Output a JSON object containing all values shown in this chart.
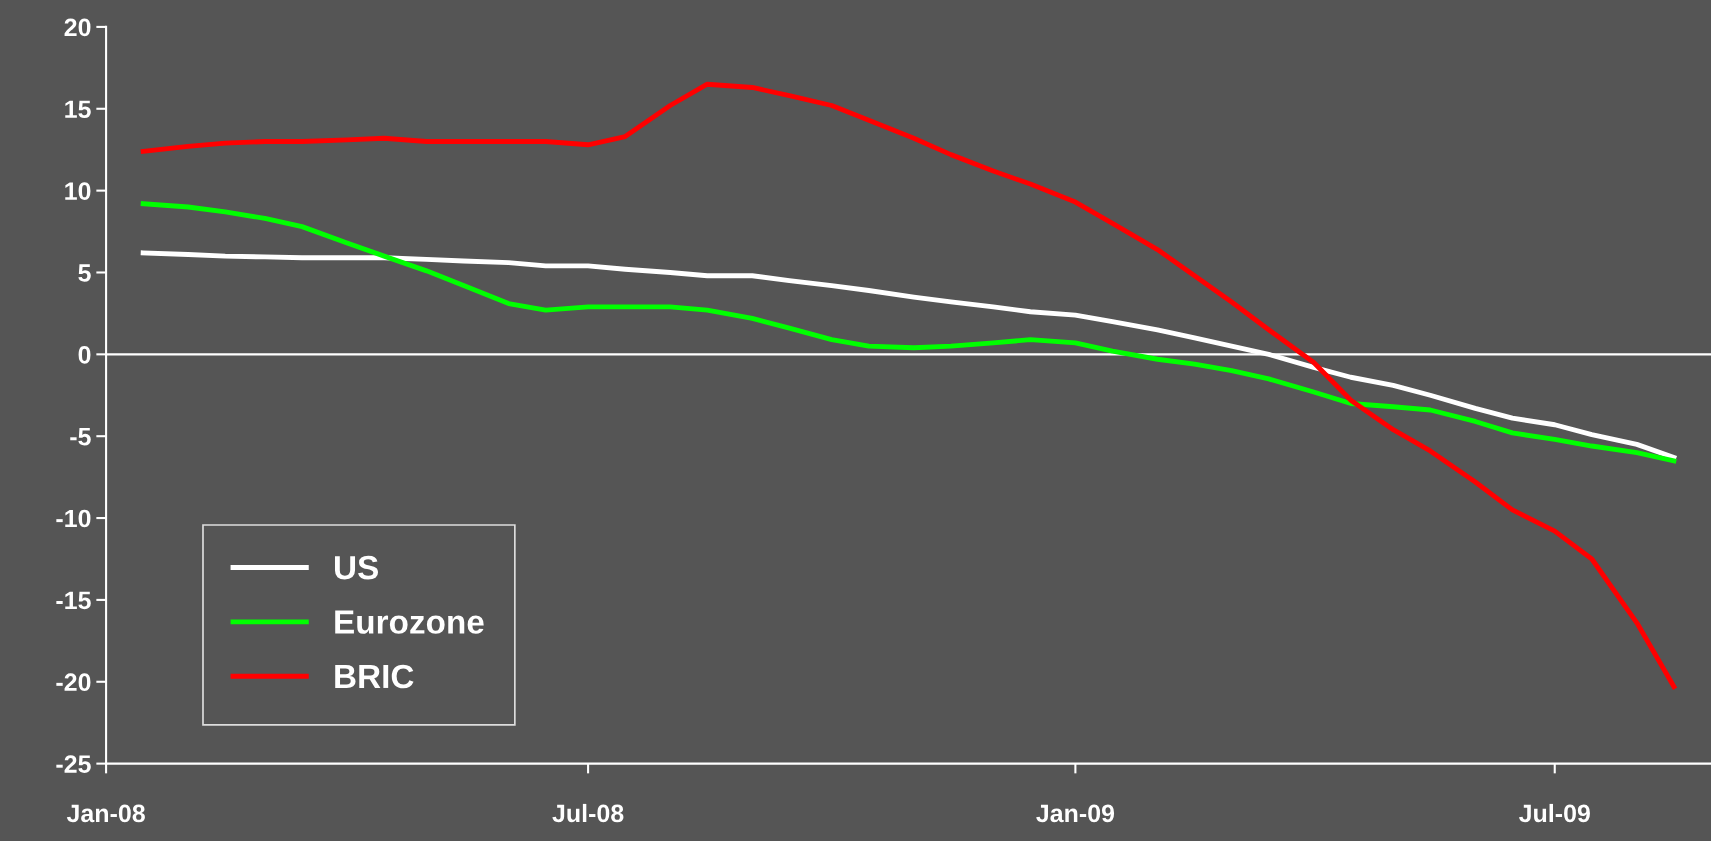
{
  "chart_data": {
    "type": "line",
    "x": [
      "2008-01-15",
      "2008-02-01",
      "2008-02-15",
      "2008-03-01",
      "2008-03-15",
      "2008-04-01",
      "2008-04-15",
      "2008-05-01",
      "2008-05-15",
      "2008-06-01",
      "2008-06-15",
      "2008-07-01",
      "2008-07-15",
      "2008-08-01",
      "2008-08-15",
      "2008-09-01",
      "2008-09-15",
      "2008-10-01",
      "2008-10-15",
      "2008-11-01",
      "2008-11-15",
      "2008-12-01",
      "2008-12-15",
      "2009-01-01",
      "2009-01-15",
      "2009-02-01",
      "2009-02-15",
      "2009-03-01",
      "2009-03-15",
      "2009-04-01",
      "2009-04-15",
      "2009-05-01",
      "2009-05-15",
      "2009-06-01",
      "2009-06-15",
      "2009-07-01",
      "2009-07-15",
      "2009-08-01",
      "2009-08-15"
    ],
    "series": [
      {
        "name": "US",
        "color": "#ffffff",
        "values": [
          6.2,
          6.1,
          6.0,
          5.95,
          5.9,
          5.9,
          5.9,
          5.8,
          5.7,
          5.6,
          5.4,
          5.4,
          5.2,
          5.0,
          4.8,
          4.8,
          4.5,
          4.2,
          3.9,
          3.5,
          3.2,
          2.9,
          2.6,
          2.4,
          2.0,
          1.5,
          1.0,
          0.5,
          0.0,
          -0.8,
          -1.4,
          -1.9,
          -2.5,
          -3.3,
          -3.9,
          -4.3,
          -4.9,
          -5.5,
          -6.3
        ]
      },
      {
        "name": "Eurozone",
        "color": "#00ff00",
        "values": [
          9.2,
          9.0,
          8.7,
          8.3,
          7.8,
          6.8,
          6.0,
          5.1,
          4.2,
          3.1,
          2.7,
          2.9,
          2.9,
          2.9,
          2.7,
          2.2,
          1.6,
          0.9,
          0.5,
          0.4,
          0.5,
          0.7,
          0.9,
          0.7,
          0.2,
          -0.3,
          -0.6,
          -1.0,
          -1.5,
          -2.3,
          -3.0,
          -3.2,
          -3.4,
          -4.1,
          -4.8,
          -5.2,
          -5.6,
          -6.0,
          -6.5
        ]
      },
      {
        "name": "BRIC",
        "color": "#ff0000",
        "values": [
          12.4,
          12.7,
          12.9,
          13.0,
          13.0,
          13.1,
          13.2,
          13.0,
          13.0,
          13.0,
          13.0,
          12.8,
          13.3,
          15.2,
          16.5,
          16.3,
          15.8,
          15.2,
          14.3,
          13.2,
          12.2,
          11.2,
          10.4,
          9.3,
          8.0,
          6.4,
          4.8,
          3.2,
          1.5,
          -0.5,
          -2.8,
          -4.6,
          -5.9,
          -7.8,
          -9.5,
          -10.8,
          -12.5,
          -16.4,
          -20.3
        ]
      }
    ],
    "xlim": [
      "2008-01-01",
      "2009-08-29"
    ],
    "xticks": [
      {
        "value": "2008-01-01",
        "label": "Jan-08"
      },
      {
        "value": "2008-07-01",
        "label": "Jul-08"
      },
      {
        "value": "2009-01-01",
        "label": "Jan-09"
      },
      {
        "value": "2009-07-01",
        "label": "Jul-09"
      }
    ],
    "ylim": [
      -25,
      20
    ],
    "yticks": [
      -25,
      -20,
      -15,
      -10,
      -5,
      0,
      5,
      10,
      15,
      20
    ],
    "ref_lines": [
      {
        "axis": "y",
        "value": 0,
        "color": "#ffffff"
      }
    ],
    "grid": false,
    "legend": "bottom left",
    "marker": "none",
    "line_style": "solid"
  }
}
